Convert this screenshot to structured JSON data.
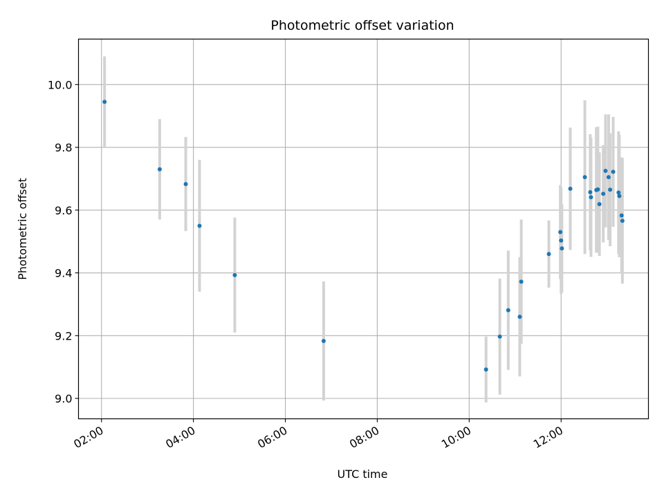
{
  "chart_data": {
    "type": "scatter",
    "title": "Photometric offset variation",
    "xlabel": "UTC time",
    "ylabel": "Photometric offset",
    "x_axis_type": "time",
    "xlim": [
      "01:30",
      "13:54"
    ],
    "ylim": [
      8.935,
      10.145
    ],
    "x_ticks": [
      "02:00",
      "04:00",
      "06:00",
      "08:00",
      "10:00",
      "12:00"
    ],
    "y_ticks": [
      9.0,
      9.2,
      9.4,
      9.6,
      9.8,
      10.0
    ],
    "y_tick_labels": [
      "9.0",
      "9.2",
      "9.4",
      "9.6",
      "9.8",
      "10.0"
    ],
    "grid": true,
    "legend": "none",
    "point_color": "#1f77b4",
    "errorbar_color": "#d3d3d3",
    "points": [
      {
        "x": "02:04",
        "y": 9.945,
        "err": 0.145
      },
      {
        "x": "03:16",
        "y": 9.73,
        "err": 0.16
      },
      {
        "x": "03:50",
        "y": 9.683,
        "err": 0.15
      },
      {
        "x": "04:08",
        "y": 9.55,
        "err": 0.21
      },
      {
        "x": "04:54",
        "y": 9.393,
        "err": 0.183
      },
      {
        "x": "06:50",
        "y": 9.183,
        "err": 0.19
      },
      {
        "x": "10:22",
        "y": 9.092,
        "err": 0.105
      },
      {
        "x": "10:40",
        "y": 9.197,
        "err": 0.185
      },
      {
        "x": "10:51",
        "y": 9.281,
        "err": 0.19
      },
      {
        "x": "11:06",
        "y": 9.26,
        "err": 0.19
      },
      {
        "x": "11:08",
        "y": 9.372,
        "err": 0.198
      },
      {
        "x": "11:44",
        "y": 9.46,
        "err": 0.107
      },
      {
        "x": "11:59",
        "y": 9.53,
        "err": 0.15
      },
      {
        "x": "12:00",
        "y": 9.503,
        "err": 0.17
      },
      {
        "x": "12:01",
        "y": 9.478,
        "err": 0.14
      },
      {
        "x": "12:12",
        "y": 9.668,
        "err": 0.195
      },
      {
        "x": "12:31",
        "y": 9.705,
        "err": 0.245
      },
      {
        "x": "12:38",
        "y": 9.657,
        "err": 0.185
      },
      {
        "x": "12:39",
        "y": 9.641,
        "err": 0.19
      },
      {
        "x": "12:46",
        "y": 9.664,
        "err": 0.2
      },
      {
        "x": "12:48",
        "y": 9.666,
        "err": 0.2
      },
      {
        "x": "12:50",
        "y": 9.619,
        "err": 0.165
      },
      {
        "x": "12:55",
        "y": 9.652,
        "err": 0.155
      },
      {
        "x": "12:58",
        "y": 9.725,
        "err": 0.18
      },
      {
        "x": "13:02",
        "y": 9.705,
        "err": 0.2
      },
      {
        "x": "13:04",
        "y": 9.665,
        "err": 0.18
      },
      {
        "x": "13:08",
        "y": 9.722,
        "err": 0.175
      },
      {
        "x": "13:15",
        "y": 9.656,
        "err": 0.195
      },
      {
        "x": "13:16",
        "y": 9.645,
        "err": 0.195
      },
      {
        "x": "13:19",
        "y": 9.583,
        "err": 0.185
      },
      {
        "x": "13:20",
        "y": 9.566,
        "err": 0.2
      }
    ]
  }
}
